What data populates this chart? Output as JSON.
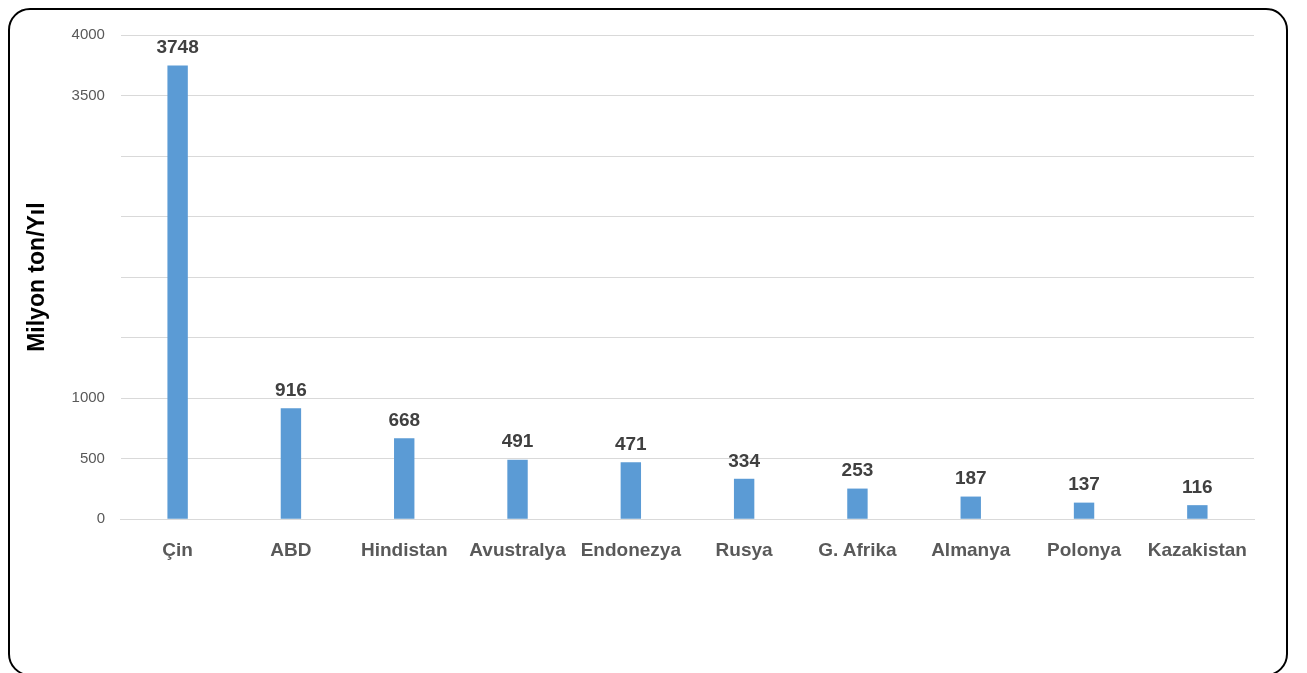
{
  "chart_data": {
    "type": "bar",
    "ylabel": "Milyon ton/Yıl",
    "categories": [
      "Çin",
      "ABD",
      "Hindistan",
      "Avustralya",
      "Endonezya",
      "Rusya",
      "G. Afrika",
      "Almanya",
      "Polonya",
      "Kazakistan"
    ],
    "values": [
      3748,
      916,
      668,
      491,
      471,
      334,
      253,
      187,
      137,
      116
    ],
    "color": "#5b9bd5",
    "ylim": [
      0,
      4000
    ],
    "yticks": [
      0,
      500,
      1000,
      {
        "value": 1500,
        "label": null
      },
      {
        "value": 2000,
        "label": null
      },
      {
        "value": 2500,
        "label": null
      },
      {
        "value": 3000,
        "label": null
      },
      3500,
      4000
    ],
    "grid": "y",
    "data_labels": true,
    "legend": false
  }
}
